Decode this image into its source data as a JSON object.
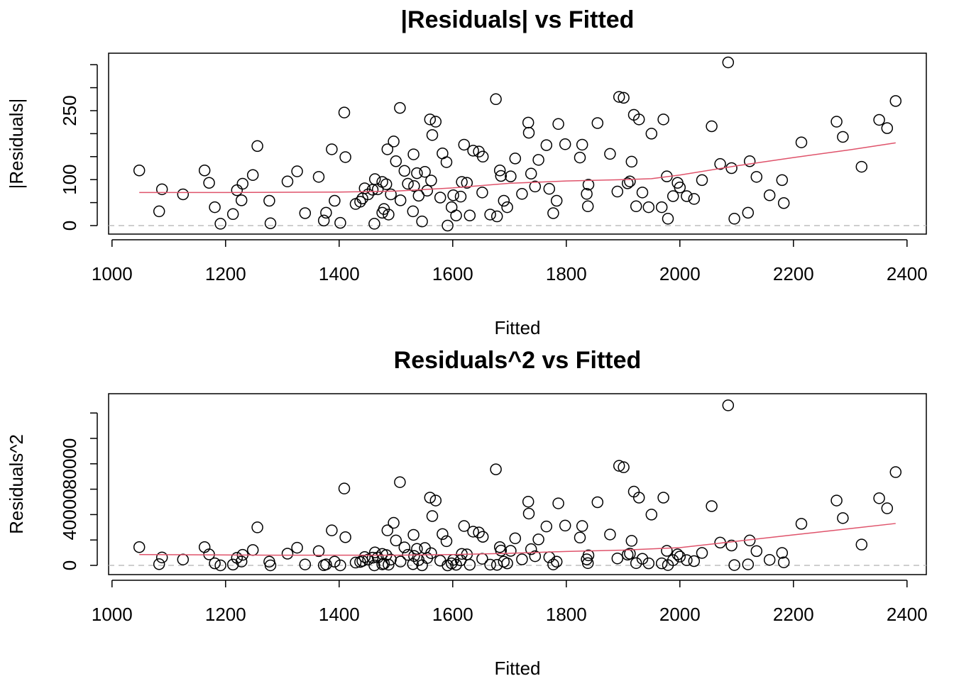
{
  "chart_data": [
    {
      "type": "scatter",
      "title": "|Residuals| vs Fitted",
      "x_label": "Fitted",
      "y_label": "|Residuals|",
      "marker_color": "#000000",
      "x": [
        1048,
        1083,
        1088,
        1125,
        1163,
        1171,
        1181,
        1191,
        1213,
        1220,
        1228,
        1230,
        1248,
        1256,
        1277,
        1279,
        1309,
        1326,
        1340,
        1364,
        1373,
        1377,
        1387,
        1392,
        1402,
        1409,
        1411,
        1429,
        1437,
        1441,
        1445,
        1451,
        1459,
        1462,
        1463,
        1468,
        1476,
        1476,
        1479,
        1483,
        1485,
        1487,
        1491,
        1496,
        1500,
        1507,
        1508,
        1515,
        1521,
        1530,
        1531,
        1532,
        1537,
        1540,
        1546,
        1551,
        1555,
        1560,
        1562,
        1564,
        1570,
        1578,
        1582,
        1589,
        1591,
        1598,
        1601,
        1606,
        1614,
        1616,
        1620,
        1625,
        1630,
        1636,
        1646,
        1652,
        1653,
        1666,
        1676,
        1678,
        1683,
        1685,
        1690,
        1696,
        1702,
        1710,
        1722,
        1733,
        1734,
        1738,
        1745,
        1751,
        1765,
        1770,
        1777,
        1783,
        1786,
        1798,
        1824,
        1828,
        1836,
        1838,
        1839,
        1855,
        1877,
        1890,
        1893,
        1901,
        1908,
        1912,
        1915,
        1919,
        1923,
        1928,
        1934,
        1945,
        1950,
        1968,
        1971,
        1977,
        1979,
        1988,
        1996,
        2000,
        2012,
        2025,
        2039,
        2056,
        2071,
        2085,
        2091,
        2096,
        2120,
        2123,
        2135,
        2158,
        2180,
        2183,
        2214,
        2276,
        2287,
        2320,
        2351,
        2365,
        2380
      ],
      "values": [
        120,
        31,
        79,
        68,
        120,
        93,
        40,
        4,
        25,
        77,
        55,
        91,
        110,
        173,
        54,
        5,
        96,
        118,
        27,
        106,
        11,
        28,
        166,
        54,
        6,
        246,
        149,
        47,
        52,
        59,
        81,
        68,
        78,
        4,
        101,
        79,
        28,
        95,
        36,
        90,
        166,
        24,
        68,
        183,
        140,
        256,
        55,
        119,
        91,
        31,
        155,
        86,
        114,
        65,
        9,
        117,
        76,
        231,
        98,
        197,
        226,
        61,
        157,
        138,
        0,
        40,
        66,
        22,
        63,
        95,
        176,
        93,
        22,
        163,
        161,
        72,
        150,
        24,
        275,
        20,
        120,
        108,
        54,
        40,
        107,
        146,
        69,
        224,
        202,
        113,
        85,
        143,
        175,
        80,
        27,
        54,
        221,
        177,
        148,
        176,
        69,
        42,
        89,
        223,
        156,
        74,
        280,
        278,
        92,
        96,
        139,
        241,
        42,
        231,
        72,
        40,
        200,
        40,
        231,
        107,
        15,
        64,
        93,
        83,
        64,
        58,
        99,
        216,
        134,
        355,
        125,
        15,
        28,
        140,
        106,
        66,
        99,
        49,
        181,
        226,
        193,
        128,
        230,
        212,
        271
      ],
      "fit": {
        "color": "#df536b",
        "x": [
          1048,
          1200,
          1400,
          1500,
          1600,
          1700,
          1800,
          1900,
          1950,
          2000,
          2100,
          2200,
          2300,
          2380
        ],
        "values": [
          72,
          72,
          73,
          75,
          82,
          92,
          97,
          100,
          102,
          110,
          130,
          148,
          165,
          180
        ]
      },
      "reference_line": {
        "value": 0,
        "color": "#bebebe"
      },
      "xlim": [
        994,
        2434
      ],
      "xticks": [
        1000,
        1200,
        1400,
        1600,
        1800,
        2000,
        2200,
        2400
      ],
      "ylim": [
        -18.5,
        375
      ],
      "yticks": [
        0,
        {
          "value": 50,
          "label": null
        },
        100,
        {
          "value": 150,
          "label": null
        },
        {
          "value": 200,
          "label": null
        },
        250,
        {
          "value": 300,
          "label": null
        },
        {
          "value": 350,
          "label": null
        }
      ]
    },
    {
      "type": "scatter",
      "title": "Residuals^2 vs Fitted",
      "x_label": "Fitted",
      "y_label": "Residuals^2",
      "marker_color": "#000000",
      "x": [
        1048,
        1083,
        1088,
        1125,
        1163,
        1171,
        1181,
        1191,
        1213,
        1220,
        1228,
        1230,
        1248,
        1256,
        1277,
        1279,
        1309,
        1326,
        1340,
        1364,
        1373,
        1377,
        1387,
        1392,
        1402,
        1409,
        1411,
        1429,
        1437,
        1441,
        1445,
        1451,
        1459,
        1462,
        1463,
        1468,
        1476,
        1476,
        1479,
        1483,
        1485,
        1487,
        1491,
        1496,
        1500,
        1507,
        1508,
        1515,
        1521,
        1530,
        1531,
        1532,
        1537,
        1540,
        1546,
        1551,
        1555,
        1560,
        1562,
        1564,
        1570,
        1578,
        1582,
        1589,
        1591,
        1598,
        1601,
        1606,
        1614,
        1616,
        1620,
        1625,
        1630,
        1636,
        1646,
        1652,
        1653,
        1666,
        1676,
        1678,
        1683,
        1685,
        1690,
        1696,
        1702,
        1710,
        1722,
        1733,
        1734,
        1738,
        1745,
        1751,
        1765,
        1770,
        1777,
        1783,
        1786,
        1798,
        1824,
        1828,
        1836,
        1838,
        1839,
        1855,
        1877,
        1890,
        1893,
        1901,
        1908,
        1912,
        1915,
        1919,
        1923,
        1928,
        1934,
        1945,
        1950,
        1968,
        1971,
        1977,
        1979,
        1988,
        1996,
        2000,
        2012,
        2025,
        2039,
        2056,
        2071,
        2085,
        2091,
        2096,
        2120,
        2123,
        2135,
        2158,
        2180,
        2183,
        2214,
        2276,
        2287,
        2320,
        2351,
        2365,
        2380
      ],
      "values": [
        14400,
        961,
        6241,
        4624,
        14400,
        8649,
        1600,
        16,
        625,
        5929,
        3025,
        8281,
        12100,
        29929,
        2916,
        25,
        9216,
        13924,
        729,
        11236,
        121,
        784,
        27556,
        2916,
        36,
        60516,
        22201,
        2209,
        2704,
        3481,
        6561,
        4624,
        6084,
        16,
        10201,
        6241,
        784,
        9025,
        1296,
        8100,
        27556,
        576,
        4624,
        33489,
        19600,
        65536,
        3025,
        14161,
        8281,
        961,
        24025,
        7396,
        12996,
        4225,
        81,
        13689,
        5776,
        53361,
        9604,
        38809,
        51076,
        3721,
        24649,
        19044,
        0,
        1600,
        4356,
        484,
        3969,
        9025,
        30976,
        8649,
        484,
        26569,
        25921,
        5184,
        22500,
        576,
        75625,
        400,
        14400,
        11664,
        2916,
        1600,
        11449,
        21316,
        4761,
        50176,
        40804,
        12769,
        7225,
        20449,
        30625,
        6400,
        729,
        2916,
        48841,
        31329,
        21904,
        30976,
        4761,
        1764,
        7921,
        49729,
        24336,
        5476,
        78400,
        77284,
        8464,
        9216,
        19321,
        58081,
        1764,
        53361,
        5184,
        1600,
        40000,
        1600,
        53361,
        11449,
        225,
        4096,
        8649,
        6889,
        4096,
        3364,
        9801,
        46656,
        17956,
        126025,
        15625,
        225,
        784,
        19600,
        11236,
        4356,
        9801,
        2401,
        32761,
        51076,
        37249,
        16384,
        52900,
        44944,
        73441
      ],
      "fit": {
        "color": "#df536b",
        "x": [
          1048,
          1300,
          1500,
          1600,
          1700,
          1800,
          1900,
          2000,
          2100,
          2200,
          2300,
          2380
        ],
        "values": [
          8500,
          8000,
          8000,
          8500,
          9500,
          11000,
          12000,
          14000,
          19000,
          24000,
          29000,
          33000
        ]
      },
      "reference_line": {
        "value": 0,
        "color": "#bebebe"
      },
      "xlim": [
        994,
        2434
      ],
      "xticks": [
        1000,
        1200,
        1400,
        1600,
        1800,
        2000,
        2200,
        2400
      ],
      "ylim": [
        -7260,
        135200
      ],
      "yticks": [
        0,
        {
          "value": 20000,
          "label": null
        },
        40000,
        {
          "value": 60000,
          "label": null
        },
        80000,
        {
          "value": 100000,
          "label": null
        },
        {
          "value": 120000,
          "label": null
        }
      ]
    }
  ]
}
